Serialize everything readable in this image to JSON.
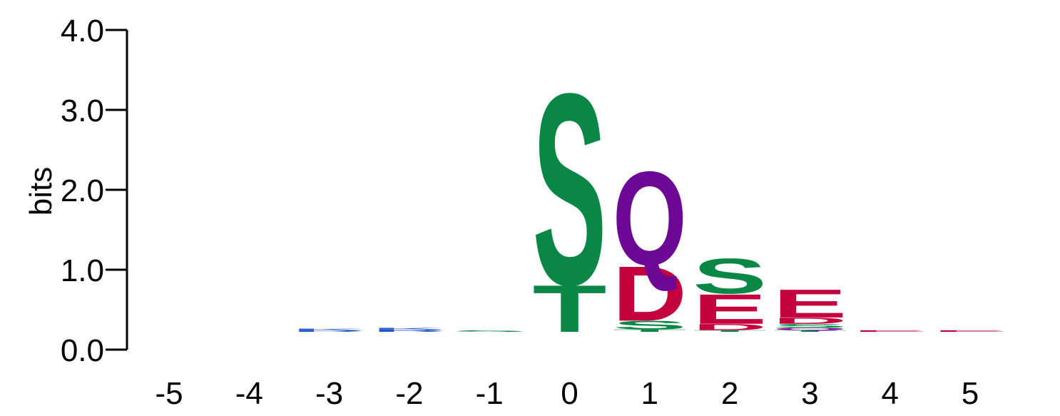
{
  "chart_data": {
    "type": "sequence-logo",
    "title": "",
    "xlabel": "",
    "ylabel": "bits",
    "ylim": [
      0,
      4
    ],
    "yticks": [
      "0.0",
      "1.0",
      "2.0",
      "3.0",
      "4.0"
    ],
    "positions": [
      "-5",
      "-4",
      "-3",
      "-2",
      "-1",
      "0",
      "1",
      "2",
      "3",
      "4",
      "5"
    ],
    "colors": {
      "S": "#0a8745",
      "T": "#0a8745",
      "G": "#0a8745",
      "Q": "#6d0896",
      "N": "#6d0896",
      "D": "#c4023e",
      "E": "#c4023e",
      "K": "#1f56c9",
      "R": "#1f56c9"
    },
    "stacks": [
      {
        "position": "-5",
        "letters": []
      },
      {
        "position": "-4",
        "letters": []
      },
      {
        "position": "-3",
        "letters": [
          {
            "letter": "R",
            "bits": 0.02
          },
          {
            "letter": "K",
            "bits": 0.02
          }
        ]
      },
      {
        "position": "-2",
        "letters": [
          {
            "letter": "R",
            "bits": 0.03
          },
          {
            "letter": "K",
            "bits": 0.02
          }
        ]
      },
      {
        "position": "-1",
        "letters": [
          {
            "letter": "S",
            "bits": 0.02
          }
        ]
      },
      {
        "position": "0",
        "letters": [
          {
            "letter": "T",
            "bits": 0.6
          },
          {
            "letter": "S",
            "bits": 2.45
          }
        ]
      },
      {
        "position": "1",
        "letters": [
          {
            "letter": "T",
            "bits": 0.03
          },
          {
            "letter": "S",
            "bits": 0.11
          },
          {
            "letter": "D",
            "bits": 0.7
          },
          {
            "letter": "Q",
            "bits": 1.2
          }
        ]
      },
      {
        "position": "2",
        "letters": [
          {
            "letter": "T",
            "bits": 0.02
          },
          {
            "letter": "D",
            "bits": 0.08
          },
          {
            "letter": "E",
            "bits": 0.38
          },
          {
            "letter": "S",
            "bits": 0.45
          }
        ]
      },
      {
        "position": "3",
        "letters": [
          {
            "letter": "T",
            "bits": 0.02
          },
          {
            "letter": "Q",
            "bits": 0.03
          },
          {
            "letter": "S",
            "bits": 0.05
          },
          {
            "letter": "D",
            "bits": 0.08
          },
          {
            "letter": "E",
            "bits": 0.36
          }
        ]
      },
      {
        "position": "4",
        "letters": [
          {
            "letter": "E",
            "bits": 0.02
          }
        ]
      },
      {
        "position": "5",
        "letters": [
          {
            "letter": "E",
            "bits": 0.02
          }
        ]
      }
    ]
  }
}
